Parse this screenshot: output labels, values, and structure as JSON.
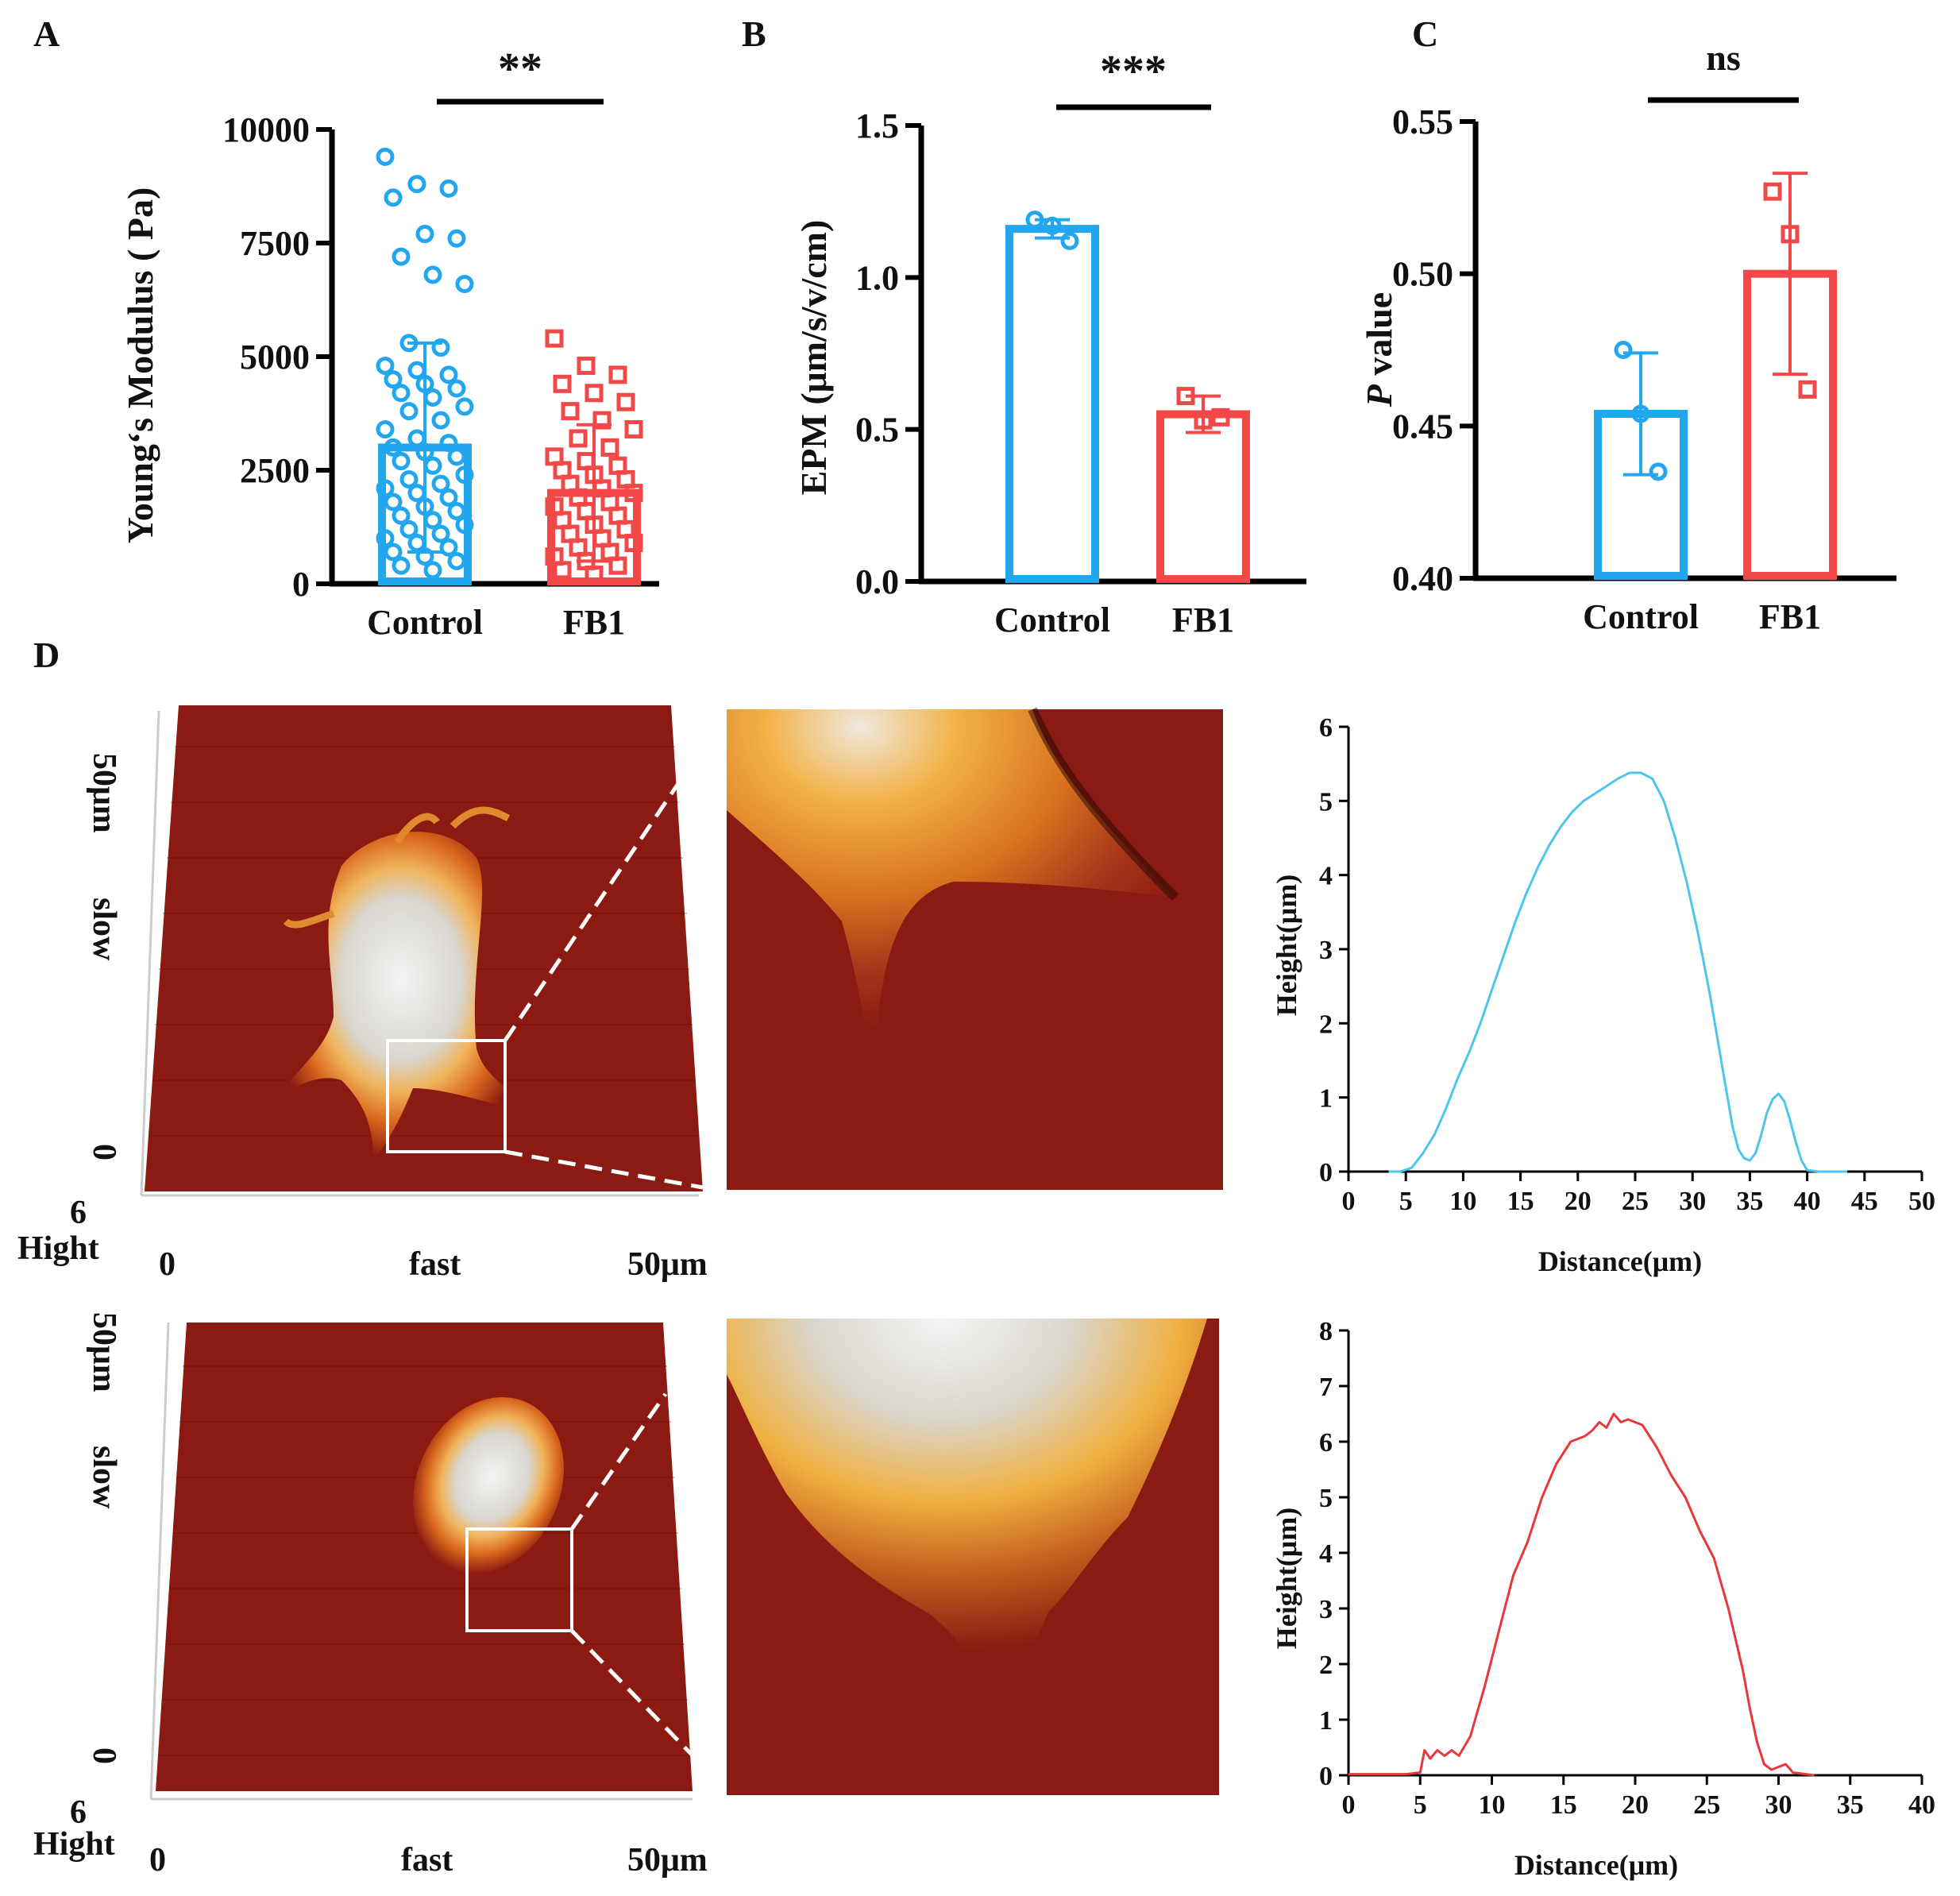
{
  "panels": {
    "A": "A",
    "B": "B",
    "C": "C",
    "D": "D"
  },
  "colors": {
    "control": "#22A6EE",
    "fb1": "#F24848",
    "profile_control": "#4CC6EC",
    "profile_fb1": "#E8383B",
    "afm_bg": "#8B1A12"
  },
  "afm": {
    "top": {
      "y_max": "50μm",
      "y_min": "0",
      "y_mid": "slow",
      "z_label": "Hight",
      "z_val": "6",
      "x_min": "0",
      "x_mid": "fast",
      "x_max": "50μm"
    },
    "bottom": {
      "y_max": "50μm",
      "y_min": "0",
      "y_mid": "slow",
      "z_label": "Hight",
      "z_val": "6",
      "x_min": "0",
      "x_mid": "fast",
      "x_max": "50μm"
    }
  },
  "chart_data": [
    {
      "id": "A",
      "type": "bar",
      "categories": [
        "Control",
        "FB1"
      ],
      "values": [
        3000,
        2000
      ],
      "errors": [
        2300,
        1500
      ],
      "ylabel": "Young‘s Modulus ( Pa)",
      "ylim": [
        0,
        10000
      ],
      "yticks": [
        0,
        2500,
        5000,
        7500,
        10000
      ],
      "ytick_labels": [
        "0",
        "2500",
        "5000",
        "7500",
        "10000"
      ],
      "significance": "**",
      "points": [
        [
          9400,
          8800,
          8700,
          8500,
          7700,
          7600,
          7200,
          6800,
          6600,
          5300,
          5200,
          4800,
          4700,
          4600,
          4500,
          4400,
          4300,
          4200,
          4100,
          3900,
          3800,
          3600,
          3400,
          3200,
          3100,
          3000,
          2900,
          2800,
          2700,
          2600,
          2400,
          2300,
          2200,
          2100,
          2000,
          1900,
          1800,
          1700,
          1600,
          1500,
          1400,
          1300,
          1200,
          1100,
          1000,
          900,
          800,
          700,
          600,
          500,
          400,
          300
        ],
        [
          5400,
          4800,
          4600,
          4400,
          4200,
          4000,
          3800,
          3600,
          3400,
          3200,
          3000,
          2800,
          2700,
          2600,
          2500,
          2400,
          2300,
          2200,
          2100,
          2000,
          1900,
          1800,
          1700,
          1600,
          1500,
          1400,
          1300,
          1200,
          1100,
          1000,
          900,
          800,
          700,
          600,
          500,
          400,
          300,
          200
        ]
      ]
    },
    {
      "id": "B",
      "type": "bar",
      "categories": [
        "Control",
        "FB1"
      ],
      "values": [
        1.16,
        0.55
      ],
      "errors": [
        0.03,
        0.06
      ],
      "ylabel": "EPM (μm/s/v/cm)",
      "ylim": [
        0,
        1.5
      ],
      "yticks": [
        0,
        0.5,
        1.0,
        1.5
      ],
      "ytick_labels": [
        "0.0",
        "0.5",
        "1.0",
        "1.5"
      ],
      "significance": "***",
      "points": [
        [
          1.19,
          1.17,
          1.12
        ],
        [
          0.61,
          0.53,
          0.54
        ]
      ]
    },
    {
      "id": "C",
      "type": "bar",
      "categories": [
        "Control",
        "FB1"
      ],
      "values": [
        0.454,
        0.5
      ],
      "errors": [
        0.02,
        0.033
      ],
      "ylabel_italic": "P",
      "ylabel": " value",
      "ylim": [
        0.4,
        0.55
      ],
      "yticks": [
        0.4,
        0.45,
        0.5,
        0.55
      ],
      "ytick_labels": [
        "0.40",
        "0.45",
        "0.50",
        "0.55"
      ],
      "significance": "ns",
      "points": [
        [
          0.475,
          0.454,
          0.435
        ],
        [
          0.527,
          0.513,
          0.462
        ]
      ]
    },
    {
      "id": "D1",
      "type": "line",
      "xlabel": "Distance(μm)",
      "ylabel": "Height(μm)",
      "xlim": [
        0,
        50
      ],
      "ylim": [
        0,
        6
      ],
      "xticks": [
        0,
        5,
        10,
        15,
        20,
        25,
        30,
        35,
        40,
        45,
        50
      ],
      "xtick_labels": [
        "0",
        "5",
        "10",
        "15",
        "20",
        "25",
        "30",
        "35",
        "40",
        "45",
        "50"
      ],
      "yticks": [
        0,
        1,
        2,
        3,
        4,
        5,
        6
      ],
      "ytick_labels": [
        "0",
        "1",
        "2",
        "3",
        "4",
        "5",
        "6"
      ],
      "x": [
        3.5,
        4.5,
        5.5,
        6.5,
        7.5,
        8.5,
        9.5,
        10.5,
        11.5,
        12.5,
        13.5,
        14.5,
        15.5,
        16.5,
        17.5,
        18.5,
        19.5,
        20.5,
        21.5,
        22.5,
        23.5,
        24.5,
        25.5,
        26.5,
        27.5,
        28.5,
        29.5,
        30.5,
        31.5,
        32.5,
        33.5,
        34.0,
        34.5,
        35.0,
        35.5,
        36.0,
        36.5,
        37.0,
        37.5,
        38.0,
        38.5,
        39.0,
        39.5,
        40.0,
        41.0,
        43.5
      ],
      "y": [
        0,
        0,
        0.05,
        0.25,
        0.5,
        0.85,
        1.25,
        1.6,
        2.0,
        2.45,
        2.9,
        3.35,
        3.75,
        4.1,
        4.4,
        4.65,
        4.85,
        5.0,
        5.1,
        5.2,
        5.3,
        5.38,
        5.38,
        5.3,
        5.0,
        4.5,
        3.9,
        3.2,
        2.4,
        1.5,
        0.6,
        0.3,
        0.18,
        0.15,
        0.25,
        0.5,
        0.8,
        0.98,
        1.05,
        0.95,
        0.7,
        0.4,
        0.15,
        0.02,
        0,
        0
      ]
    },
    {
      "id": "D2",
      "type": "line",
      "xlabel": "Distance(μm)",
      "ylabel": "Height(μm)",
      "xlim": [
        0,
        40
      ],
      "ylim": [
        0,
        8
      ],
      "xticks": [
        0,
        5,
        10,
        15,
        20,
        25,
        30,
        35,
        40
      ],
      "xtick_labels": [
        "0",
        "5",
        "10",
        "15",
        "20",
        "25",
        "30",
        "35",
        "40"
      ],
      "yticks": [
        0,
        1,
        2,
        3,
        4,
        5,
        6,
        7,
        8
      ],
      "ytick_labels": [
        "0",
        "1",
        "2",
        "3",
        "4",
        "5",
        "6",
        "7",
        "8"
      ],
      "x": [
        0,
        4,
        5.0,
        5.3,
        5.7,
        6.2,
        6.7,
        7.2,
        7.7,
        8.5,
        9.5,
        10.5,
        11.5,
        12.5,
        13.5,
        14.5,
        15.5,
        16.5,
        17.0,
        17.5,
        18.0,
        18.5,
        19.0,
        19.5,
        20.0,
        20.5,
        21.5,
        22.5,
        23.5,
        24.5,
        25.5,
        26.5,
        27.5,
        28.0,
        28.5,
        29.0,
        29.5,
        30.0,
        30.5,
        31.0,
        32.5
      ],
      "y": [
        0.02,
        0.02,
        0.05,
        0.45,
        0.3,
        0.45,
        0.35,
        0.45,
        0.35,
        0.7,
        1.6,
        2.6,
        3.6,
        4.2,
        5.0,
        5.6,
        6.0,
        6.1,
        6.2,
        6.35,
        6.25,
        6.5,
        6.35,
        6.4,
        6.35,
        6.3,
        5.9,
        5.4,
        5.0,
        4.4,
        3.9,
        3.0,
        1.9,
        1.2,
        0.6,
        0.2,
        0.1,
        0.15,
        0.2,
        0.05,
        0
      ]
    }
  ]
}
